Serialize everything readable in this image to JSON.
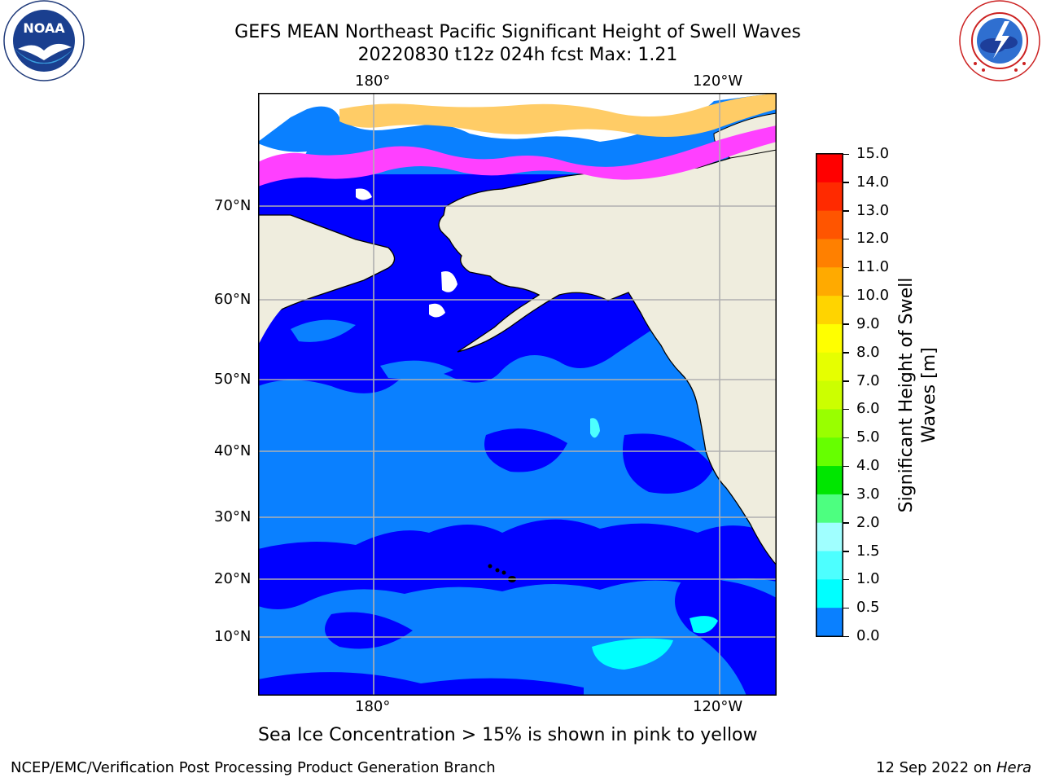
{
  "header": {
    "title_line1": "GEFS MEAN Northeast Pacific Significant Height of Swell Waves",
    "title_line2": "20220830 t12z 024h fcst   Max: 1.21"
  },
  "logos": {
    "left": {
      "icon": "noaa-logo-icon",
      "text": "NOAA",
      "ring_text": "NATIONAL OCEANIC AND ATMOSPHERIC ADMINISTRATION · U.S. DEPARTMENT OF COMMERCE"
    },
    "right": {
      "icon": "nws-logo-icon",
      "ring_text": "NATIONAL WEATHER SERVICE"
    }
  },
  "map": {
    "lon_ticks_top": [
      "180°",
      "120°W"
    ],
    "lon_ticks_bottom": [
      "180°",
      "120°W"
    ],
    "lat_ticks": [
      "70°N",
      "60°N",
      "50°N",
      "40°N",
      "30°N",
      "20°N",
      "10°N"
    ],
    "colors": {
      "ocean_low": "#0000ff",
      "ocean_mid": "#0a80ff",
      "land": "#efedde",
      "ice_white": "#ffffff",
      "ice_pink": "#ff40ff",
      "ice_orange": "#ffb060",
      "cyan": "#00ffff",
      "grid": "#b0b0b0"
    }
  },
  "colorbar": {
    "label_line1": "Significant Height of Swell",
    "label_line2": "Waves [m]",
    "ticks": [
      "15.0",
      "14.0",
      "13.0",
      "12.0",
      "11.0",
      "10.0",
      "9.0",
      "8.0",
      "7.0",
      "6.0",
      "5.0",
      "4.0",
      "3.0",
      "2.0",
      "1.5",
      "1.0",
      "0.5",
      "0.0"
    ],
    "colors": [
      "#ff0000",
      "#ff2a00",
      "#ff5500",
      "#ff8000",
      "#ffaa00",
      "#ffd400",
      "#ffff00",
      "#e6ff00",
      "#ccff00",
      "#99ff00",
      "#66ff00",
      "#00e600",
      "#4dff80",
      "#a0ffff",
      "#4dffff",
      "#00ffff",
      "#0a80ff",
      "#0000ff"
    ]
  },
  "notes": {
    "sea_ice": "Sea Ice Concentration > 15% is shown in pink to yellow"
  },
  "footer": {
    "left": "NCEP/EMC/Verification Post Processing Product Generation Branch",
    "right_date": "12 Sep 2022 on ",
    "right_host": "Hera"
  }
}
